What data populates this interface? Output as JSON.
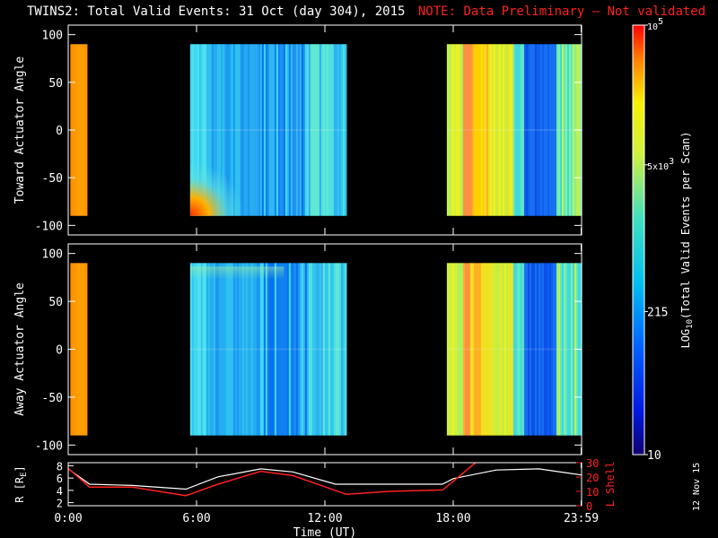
{
  "title": {
    "main": "TWINS2: Total Valid Events: 31 Oct (day 304), 2015",
    "note": "NOTE: Data Preliminary — Not validated"
  },
  "date_stamp": "12 Nov 15",
  "colors": {
    "background": "#000000",
    "axes": "#ffffff",
    "note": "#ff2020",
    "l_shell_line": "#ff2020",
    "r_line": "#ffffff"
  },
  "chart_data": [
    {
      "type": "heatmap",
      "panel": "top",
      "title": "",
      "xlabel": "",
      "ylabel": "Toward Actuator Angle",
      "xlim": [
        0,
        24
      ],
      "ylim": [
        -110,
        110
      ],
      "yticks": [
        "100",
        "50",
        "0",
        "-50",
        "-100"
      ],
      "angle_range": [
        -90,
        90
      ],
      "data_blocks": [
        {
          "start_hour": 0.1,
          "end_hour": 0.9,
          "profile": "orange"
        },
        {
          "start_hour": 5.7,
          "end_hour": 13.0,
          "profile": "cyan-blue",
          "low_corner_hot": true
        },
        {
          "start_hour": 17.7,
          "end_hour": 24.0,
          "profile": "yellow-blue"
        }
      ]
    },
    {
      "type": "heatmap",
      "panel": "middle",
      "title": "",
      "xlabel": "",
      "ylabel": "Away Actuator Angle",
      "xlim": [
        0,
        24
      ],
      "ylim": [
        -110,
        110
      ],
      "yticks": [
        "100",
        "50",
        "0",
        "-50",
        "-100"
      ],
      "angle_range": [
        -90,
        90
      ],
      "data_blocks": [
        {
          "start_hour": 0.1,
          "end_hour": 0.9,
          "profile": "orange"
        },
        {
          "start_hour": 5.7,
          "end_hour": 13.0,
          "profile": "cyan-blue",
          "top_band": true
        },
        {
          "start_hour": 17.7,
          "end_hour": 24.0,
          "profile": "yellow-blue"
        }
      ]
    },
    {
      "type": "line",
      "panel": "bottom",
      "xlabel": "Time (UT)",
      "xticks": [
        "0:00",
        "6:00",
        "12:00",
        "18:00",
        "23:59"
      ],
      "xtick_hours": [
        0,
        6,
        12,
        18,
        23.98
      ],
      "ylabel_left": "R [RE]",
      "ylabel_left_main": "R [R",
      "ylabel_left_sub": "E",
      "ylabel_left_end": "]",
      "ylim_left": [
        1.5,
        8.5
      ],
      "yticks_left": [
        "8",
        "6",
        "4",
        "2"
      ],
      "ylabel_right": "L Shell",
      "ylim_right": [
        0,
        30
      ],
      "yticks_right": [
        "30",
        "20",
        "10",
        "0"
      ],
      "series": [
        {
          "axis": "left",
          "color": "#ffffff",
          "x": [
            0,
            1,
            3,
            5.5,
            7,
            9,
            10.5,
            12.5,
            13,
            15,
            17.5,
            18,
            20,
            22,
            24
          ],
          "y": [
            7.5,
            5.0,
            4.8,
            4.2,
            6.2,
            7.5,
            7.0,
            5.0,
            5.0,
            5.0,
            5.0,
            5.9,
            7.3,
            7.5,
            6.5
          ]
        },
        {
          "axis": "right",
          "color": "#ff2020",
          "x": [
            0,
            1,
            3,
            5.5,
            7,
            9,
            10.5,
            13,
            15,
            17.5,
            18,
            19.2
          ],
          "y": [
            26,
            13,
            13,
            7,
            15,
            24,
            21,
            8,
            10,
            11,
            17,
            32
          ]
        }
      ]
    }
  ],
  "colorbar": {
    "label": "LOG10(Total Valid Events per Scan)",
    "label_main": "LOG",
    "label_sub": "10",
    "label_rest": "(Total Valid Events per Scan)",
    "scale": "log",
    "range": [
      10,
      100000
    ],
    "ticks": [
      {
        "value": 100000,
        "base": "10",
        "sup": "5",
        "mult": ""
      },
      {
        "value": 5000,
        "base": "10",
        "sup": "3",
        "mult": "5x"
      },
      {
        "value": 215,
        "base": "215",
        "sup": "",
        "mult": ""
      },
      {
        "value": 10,
        "base": "10",
        "sup": "",
        "mult": ""
      }
    ]
  }
}
